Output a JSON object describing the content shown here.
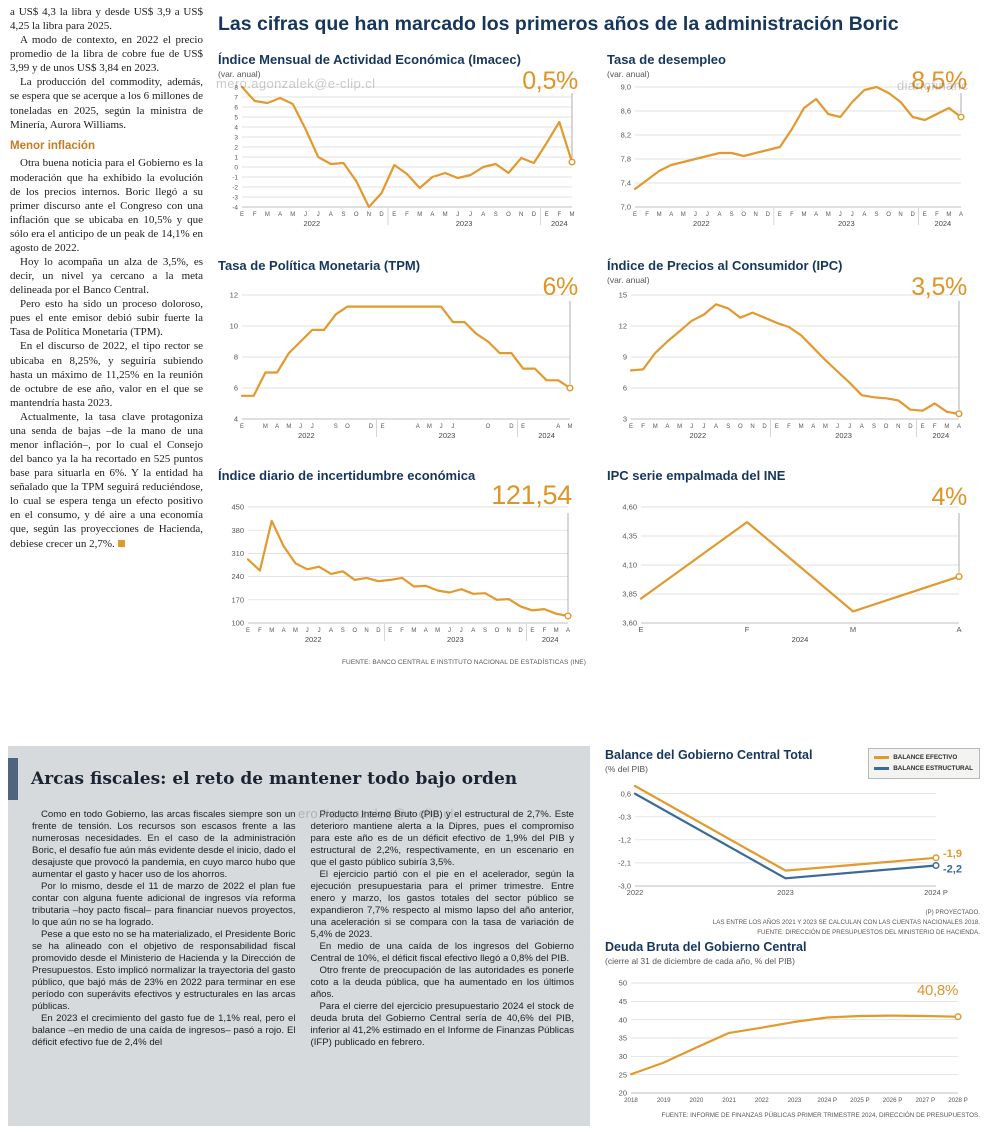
{
  "headline": "Las cifras que han marcado los primeros años de la administración Boric",
  "colors": {
    "accent_orange": "#E2992E",
    "structural_blue": "#3A6A9B",
    "headline_navy": "#16365C",
    "panel_gray": "#D7DADD",
    "subhead_orange": "#C97A24"
  },
  "left_article": {
    "p1": "a US$ 4,3 la libra y desde US$ 3,9 a US$ 4,25 la libra para 2025.",
    "p2": "A modo de contexto, en 2022 el precio promedio de la libra de cobre fue de US$ 3,99 y de unos US$ 3,84 en 2023.",
    "p3": "La producción del commodity, además, se espera que se acerque a los 6 millones de toneladas en 2025, según la ministra de Minería, Aurora Williams.",
    "subhead": "Menor inflación",
    "p4": "Otra buena noticia para el Gobierno es la moderación que ha exhibido la evolución de los precios internos. Boric llegó a su primer discurso ante el Congreso con una inflación que se ubicaba en 10,5% y que sólo era el anticipo de un peak de 14,1% en agosto de 2022.",
    "p5": "Hoy lo acompaña un alza de 3,5%, es decir, un nivel ya cercano a la meta delineada por el Banco Central.",
    "p6": "Pero esto ha sido un proceso doloroso, pues el ente emisor debió subir fuerte la Tasa de Política Monetaria (TPM).",
    "p7": "En el discurso de 2022, el tipo rector se ubicaba en 8,25%, y seguiría subiendo hasta un máximo de 11,25% en la reunión de octubre de ese año, valor en el que se mantendría hasta 2023.",
    "p8": "Actualmente, la tasa clave protagoniza una senda de bajas –de la mano de una menor inflación–, por lo cual el Consejo del banco ya la ha recortado en 525 puntos base para situarla en 6%. Y la entidad ha señalado que la TPM seguirá reduciéndose, lo cual se espera tenga un efecto positivo en el consumo, y dé aire a una economía que, según las proyecciones de Hacienda, debiese crecer un 2,7%."
  },
  "top_charts_source": "FUENTE: BANCO CENTRAL E INSTITUTO NACIONAL DE ESTADÍSTICAS (INE)",
  "fiscal_article": {
    "title": "Arcas fiscales: el reto de mantener todo bajo orden",
    "col1": [
      "Como en todo Gobierno, las arcas fiscales siempre son un frente de tensión. Los recursos son escasos frente a las numerosas necesidades. En el caso de la administración Boric, el desafío fue aún más evidente desde el inicio, dado el desajuste que provocó la pandemia, en cuyo marco hubo que aumentar el gasto y hacer uso de los ahorros.",
      "Por lo mismo, desde el 11 de marzo de 2022 el plan fue contar con alguna fuente adicional de ingresos vía reforma tributaria –hoy pacto fiscal– para financiar nuevos proyectos, lo que aún no se ha logrado.",
      "Pese a que esto no se ha materializado, el Presidente Boric se ha alineado con el objetivo de responsabilidad fiscal promovido desde el Ministerio de Hacienda y la Dirección de Presupuestos. Esto implicó normalizar la trayectoria del gasto público, que bajó más de 23% en 2022 para terminar en ese período con superávits efectivos y estructurales en las arcas públicas.",
      "En 2023 el crecimiento del gasto fue de 1,1% real, pero el balance –en medio de una caída de ingresos– pasó a rojo. El déficit efectivo fue de 2,4% del"
    ],
    "col2": [
      "Producto Interno Bruto (PIB) y el estructural de 2,7%. Este deterioro mantiene alerta a la Dipres, pues el compromiso para este año es de un déficit efectivo de 1,9% del PIB y estructural de 2,2%, respectivamente, en un escenario en que el gasto público subiría 3,5%.",
      "El ejercicio partió con el pie en el acelerador, según la ejecución presupuestaria para el primer trimestre. Entre enero y marzo, los gastos totales del sector público se expandieron 7,7% respecto al mismo lapso del año anterior, una aceleración si se compara con la tasa de variación de 5,4% de 2023.",
      "En medio de una caída de los ingresos del Gobierno Central de 10%, el déficit fiscal efectivo llegó a 0,8% del PIB.",
      "Otro frente de preocupación de las autoridades es ponerle coto a la deuda pública, que ha aumentado en los últimos años.",
      "Para el cierre del ejercicio presupuestario 2024 el stock de deuda bruta del Gobierno Central sería de 40,6% del PIB, inferior al 41,2% estimado en el Informe de Finanzas Públicas (IFP) publicado en febrero."
    ]
  },
  "watermarks": {
    "w1": "mero.agonzalek@e-clip.cl",
    "w2": "diariofinanc",
    "w3": "ero.#agonzalez@e-clip.cl"
  },
  "chart_data": [
    {
      "id": "imacec",
      "type": "line",
      "title": "Índice Mensual de Actividad Económica (Imacec)",
      "subtitle": "(var. anual)",
      "big_label": "0,5%",
      "ylim": [
        -4,
        8
      ],
      "yfont": 6.5,
      "ytick_vals": [
        8,
        7,
        6,
        5,
        4,
        3,
        2,
        1,
        0,
        -1,
        -2,
        -3,
        -4
      ],
      "ytick_labels": [
        "8",
        "7",
        "6",
        "5",
        "4",
        "3",
        "2",
        "1",
        "0",
        "-1",
        "-2",
        "-3",
        "-4"
      ],
      "xlabels": [
        "E",
        "F",
        "M",
        "A",
        "M",
        "J",
        "J",
        "A",
        "S",
        "O",
        "N",
        "D",
        "E",
        "F",
        "M",
        "A",
        "M",
        "J",
        "J",
        "A",
        "S",
        "O",
        "N",
        "D",
        "E",
        "F",
        "M"
      ],
      "years": [
        {
          "label": "2022",
          "from": 0,
          "to": 11
        },
        {
          "label": "2023",
          "from": 12,
          "to": 23
        },
        {
          "label": "2024",
          "from": 24,
          "to": 26
        }
      ],
      "pad": [
        24,
        8,
        14,
        24
      ],
      "pointer": true,
      "series": [
        {
          "name": "Imacec",
          "color": "#E2992E",
          "values": [
            8.0,
            6.6,
            6.4,
            6.9,
            6.3,
            3.8,
            1.0,
            0.3,
            0.4,
            -1.4,
            -4.0,
            -2.6,
            0.2,
            -0.7,
            -2.1,
            -1.0,
            -0.6,
            -1.1,
            -0.8,
            0.0,
            0.3,
            -0.6,
            0.9,
            0.4,
            2.4,
            4.5,
            0.5
          ]
        }
      ]
    },
    {
      "id": "desempleo",
      "type": "line",
      "title": "Tasa de desempleo",
      "subtitle": "(var. anual)",
      "big_label": "8,5%",
      "ylim": [
        7.0,
        9.0
      ],
      "ytick_vals": [
        9.0,
        8.6,
        8.2,
        7.8,
        7.4,
        7.0
      ],
      "ytick_labels": [
        "9,0",
        "8,6",
        "8,2",
        "7,8",
        "7,4",
        "7,0"
      ],
      "xlabels": [
        "E",
        "F",
        "M",
        "A",
        "M",
        "J",
        "J",
        "A",
        "S",
        "O",
        "N",
        "D",
        "E",
        "F",
        "M",
        "A",
        "M",
        "J",
        "J",
        "A",
        "S",
        "O",
        "N",
        "D",
        "E",
        "F",
        "M",
        "A"
      ],
      "years": [
        {
          "label": "2022",
          "from": 0,
          "to": 11
        },
        {
          "label": "2023",
          "from": 12,
          "to": 23
        },
        {
          "label": "2024",
          "from": 24,
          "to": 27
        }
      ],
      "pad": [
        28,
        8,
        14,
        24
      ],
      "pointer": true,
      "series": [
        {
          "name": "Desempleo",
          "color": "#E2992E",
          "values": [
            7.3,
            7.45,
            7.6,
            7.7,
            7.75,
            7.8,
            7.85,
            7.9,
            7.9,
            7.85,
            7.9,
            7.95,
            8.0,
            8.3,
            8.65,
            8.8,
            8.55,
            8.5,
            8.75,
            8.95,
            9.0,
            8.9,
            8.75,
            8.5,
            8.45,
            8.55,
            8.65,
            8.5
          ]
        }
      ]
    },
    {
      "id": "tpm",
      "type": "line",
      "title": "Tasa de Política Monetaria (TPM)",
      "subtitle": "",
      "big_label": "6%",
      "ylim": [
        4,
        12
      ],
      "ytick_vals": [
        12,
        10,
        8,
        6,
        4
      ],
      "ytick_labels": [
        "12",
        "10",
        "8",
        "6",
        "4"
      ],
      "xlabels": [
        "E",
        "",
        "M",
        "A",
        "M",
        "J",
        "J",
        "",
        "S",
        "O",
        "",
        "D",
        "E",
        "",
        "",
        "A",
        "M",
        "J",
        "J",
        "",
        "",
        "O",
        "",
        "D",
        "E",
        "",
        "",
        "A",
        "M"
      ],
      "years": [
        {
          "label": "2022",
          "from": 0,
          "to": 11
        },
        {
          "label": "2023",
          "from": 12,
          "to": 23
        },
        {
          "label": "2024",
          "from": 24,
          "to": 28
        }
      ],
      "pad": [
        24,
        10,
        16,
        24
      ],
      "pointer": true,
      "series": [
        {
          "name": "TPM",
          "color": "#E2992E",
          "values": [
            5.5,
            5.5,
            7.0,
            7.0,
            8.25,
            9.0,
            9.75,
            9.75,
            10.75,
            11.25,
            11.25,
            11.25,
            11.25,
            11.25,
            11.25,
            11.25,
            11.25,
            11.25,
            10.25,
            10.25,
            9.5,
            9.0,
            8.25,
            8.25,
            7.25,
            7.25,
            6.5,
            6.5,
            6.0
          ]
        }
      ]
    },
    {
      "id": "ipc",
      "type": "line",
      "title": "Índice de Precios al Consumidor (IPC)",
      "subtitle": "(var. anual)",
      "big_label": "3,5%",
      "ylim": [
        3,
        15
      ],
      "ytick_vals": [
        15,
        12,
        9,
        6,
        3
      ],
      "ytick_labels": [
        "15",
        "12",
        "9",
        "6",
        "3"
      ],
      "xlabels": [
        "E",
        "F",
        "M",
        "A",
        "M",
        "J",
        "J",
        "A",
        "S",
        "O",
        "N",
        "D",
        "E",
        "F",
        "M",
        "A",
        "M",
        "J",
        "J",
        "A",
        "S",
        "O",
        "N",
        "D",
        "E",
        "F",
        "M",
        "A"
      ],
      "years": [
        {
          "label": "2022",
          "from": 0,
          "to": 11
        },
        {
          "label": "2023",
          "from": 12,
          "to": 23
        },
        {
          "label": "2024",
          "from": 24,
          "to": 27
        }
      ],
      "pad": [
        24,
        10,
        16,
        24
      ],
      "pointer": true,
      "series": [
        {
          "name": "IPC",
          "color": "#E2992E",
          "values": [
            7.7,
            7.8,
            9.4,
            10.5,
            11.5,
            12.5,
            13.1,
            14.1,
            13.7,
            12.8,
            13.3,
            12.8,
            12.3,
            11.9,
            11.1,
            9.9,
            8.7,
            7.6,
            6.5,
            5.3,
            5.1,
            5.0,
            4.8,
            3.9,
            3.8,
            4.5,
            3.7,
            3.5
          ]
        }
      ]
    },
    {
      "id": "incertidumbre",
      "type": "line",
      "title": "Índice diario de incertidumbre económica",
      "subtitle": "",
      "big_label": "121,54",
      "ylim": [
        100,
        450
      ],
      "ytick_vals": [
        450,
        380,
        310,
        240,
        170,
        100
      ],
      "ytick_labels": [
        "450",
        "380",
        "310",
        "240",
        "170",
        "100"
      ],
      "xlabels": [
        "E",
        "F",
        "M",
        "A",
        "M",
        "J",
        "J",
        "A",
        "S",
        "O",
        "N",
        "D",
        "E",
        "F",
        "M",
        "A",
        "M",
        "J",
        "J",
        "A",
        "S",
        "O",
        "N",
        "D",
        "E",
        "F",
        "M",
        "A"
      ],
      "years": [
        {
          "label": "2022",
          "from": 0,
          "to": 11
        },
        {
          "label": "2023",
          "from": 12,
          "to": 23
        },
        {
          "label": "2024",
          "from": 24,
          "to": 27
        }
      ],
      "pad": [
        30,
        12,
        18,
        24
      ],
      "pointer": true,
      "series": [
        {
          "name": "Incertidumbre",
          "color": "#E2992E",
          "values": [
            292,
            258,
            408,
            332,
            280,
            262,
            270,
            248,
            256,
            230,
            236,
            226,
            230,
            236,
            210,
            212,
            198,
            192,
            202,
            188,
            190,
            170,
            172,
            150,
            138,
            142,
            128,
            121.54
          ]
        }
      ]
    },
    {
      "id": "ipc-ine",
      "type": "line",
      "title": "IPC serie empalmada del INE",
      "subtitle": "",
      "big_label": "4%",
      "ylim": [
        3.6,
        4.6
      ],
      "ytick_vals": [
        4.6,
        4.35,
        4.1,
        3.85,
        3.6
      ],
      "ytick_labels": [
        "4,60",
        "4,35",
        "4,10",
        "3,85",
        "3,60"
      ],
      "xlabels": [
        "E",
        "F",
        "M",
        "A"
      ],
      "xfont": 7.5,
      "years": [
        {
          "label": "2024",
          "from": 0,
          "to": 3
        }
      ],
      "pad": [
        34,
        12,
        16,
        24
      ],
      "pointer": true,
      "series": [
        {
          "name": "IPC INE",
          "color": "#E2992E",
          "values": [
            3.81,
            4.47,
            3.7,
            4.0
          ]
        }
      ]
    },
    {
      "id": "balance",
      "type": "line",
      "title": "Balance del Gobierno Central Total",
      "subtitle": "(% del PIB)",
      "legend": [
        {
          "label": "BALANCE EFECTIVO",
          "color": "#E2992E"
        },
        {
          "label": "BALANCE ESTRUCTURAL",
          "color": "#3A6A9B"
        }
      ],
      "ylim": [
        -3.0,
        0.9
      ],
      "ytick_vals": [
        0.6,
        -0.3,
        -1.2,
        -2.1,
        -3.0
      ],
      "ytick_labels": [
        "0,6",
        "-0,3",
        "-1,2",
        "-2,1",
        "-3,0"
      ],
      "xlabels": [
        "2022",
        "2023",
        "2024 P"
      ],
      "xfont": 7.5,
      "pad": [
        30,
        6,
        44,
        18
      ],
      "series": [
        {
          "name": "BALANCE EFECTIVO",
          "color": "#E2992E",
          "values": [
            0.9,
            -2.4,
            -1.9
          ],
          "end_label": "-1,9",
          "label_dy": -1
        },
        {
          "name": "BALANCE ESTRUCTURAL",
          "color": "#3A6A9B",
          "values": [
            0.6,
            -2.7,
            -2.2
          ],
          "end_label": "-2,2",
          "label_dy": 7
        }
      ],
      "footnotes": [
        "(P) PROYECTADO.",
        "LAS ENTRE LOS AÑOS 2021 Y 2023 SE CALCULAN  CON LAS CUENTAS NACIONALES 2018.",
        "FUENTE: DIRECCIÓN DE PRESUPUESTOS DEL MINISTERIO DE HACIENDA."
      ]
    },
    {
      "id": "deuda",
      "type": "line",
      "title": "Deuda Bruta del Gobierno Central",
      "subtitle": "(cierre al 31 de diciembre de cada año, % del PIB)",
      "big_label": "40,8%",
      "ylim": [
        20,
        50
      ],
      "ytick_vals": [
        50,
        45,
        40,
        35,
        30,
        25,
        20
      ],
      "ytick_labels": [
        "50",
        "45",
        "40",
        "35",
        "30",
        "25",
        "20"
      ],
      "xlabels": [
        "2018",
        "2019",
        "2020",
        "2021",
        "2022",
        "2023",
        "2024 P",
        "2025 P",
        "2026 P",
        "2027 P",
        "2028 P"
      ],
      "xfont": 6.2,
      "pad": [
        26,
        12,
        22,
        16
      ],
      "series": [
        {
          "name": "Deuda bruta",
          "color": "#E2992E",
          "values": [
            25.1,
            28.3,
            32.4,
            36.4,
            37.8,
            39.4,
            40.6,
            41.0,
            41.1,
            41.0,
            40.8
          ]
        }
      ],
      "source": "FUENTE: INFORME DE FINANZAS PÚBLICAS PRIMER TRIMESTRE 2024, DIRECCIÓN DE PRESUPUESTOS."
    }
  ]
}
